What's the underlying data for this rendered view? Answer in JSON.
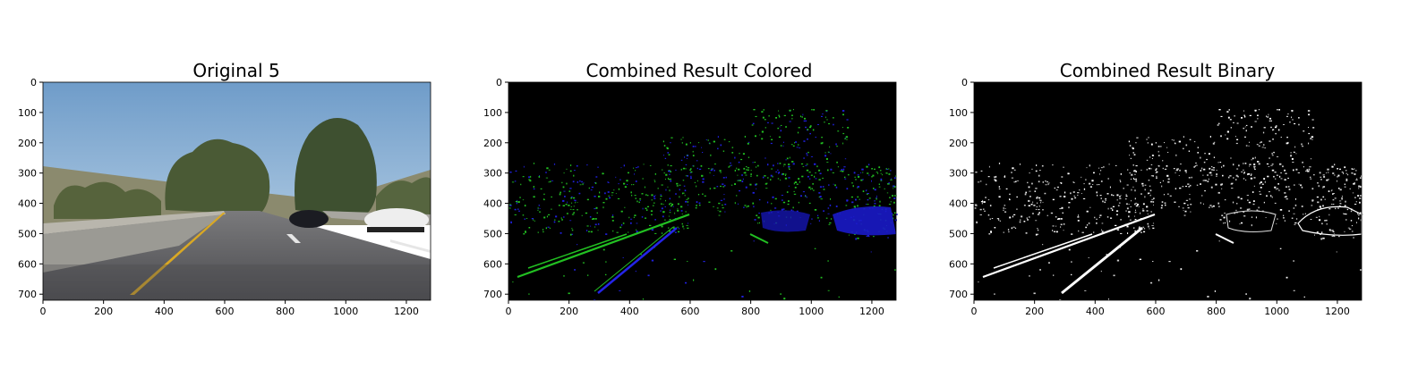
{
  "chart_data": [
    {
      "type": "image",
      "title": "Original 5",
      "x_ticks": [
        0,
        200,
        400,
        600,
        800,
        1000,
        1200
      ],
      "y_ticks": [
        0,
        100,
        200,
        300,
        400,
        500,
        600,
        700
      ],
      "xlim": [
        0,
        1280
      ],
      "ylim": [
        720,
        0
      ],
      "image_size": [
        1280,
        720
      ],
      "image_content": "road-photo",
      "colors": {
        "sky": "#7fa7cf",
        "road": "#5b5b5e",
        "lane_yellow": "#d9a824",
        "trees": "#4a5a35"
      }
    },
    {
      "type": "image",
      "title": "Combined Result Colored",
      "x_ticks": [
        0,
        200,
        400,
        600,
        800,
        1000,
        1200
      ],
      "y_ticks": [
        0,
        100,
        200,
        300,
        400,
        500,
        600,
        700
      ],
      "xlim": [
        0,
        1280
      ],
      "ylim": [
        720,
        0
      ],
      "image_size": [
        1280,
        720
      ],
      "image_content": "edge-map-colored",
      "colors": {
        "background": "#000000",
        "channel_a": "#22c022",
        "channel_b": "#2020e0"
      }
    },
    {
      "type": "image",
      "title": "Combined Result Binary",
      "x_ticks": [
        0,
        200,
        400,
        600,
        800,
        1000,
        1200
      ],
      "y_ticks": [
        0,
        100,
        200,
        300,
        400,
        500,
        600,
        700
      ],
      "xlim": [
        0,
        1280
      ],
      "ylim": [
        720,
        0
      ],
      "image_size": [
        1280,
        720
      ],
      "image_content": "edge-map-binary",
      "colors": {
        "background": "#000000",
        "foreground": "#ffffff"
      }
    }
  ]
}
